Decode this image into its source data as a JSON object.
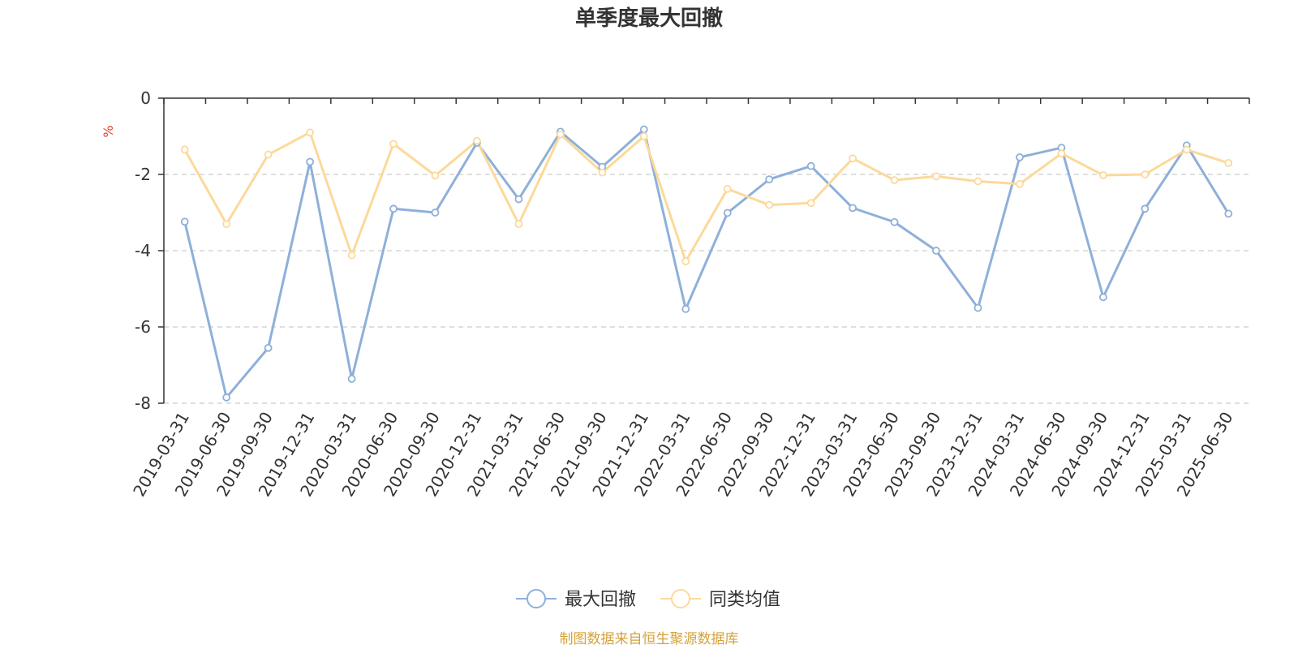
{
  "chart_data": {
    "type": "line",
    "title": "单季度最大回撤",
    "ylabel": "%",
    "ylim": [
      -8,
      0
    ],
    "yticks": [
      0,
      -2,
      -4,
      -6,
      -8
    ],
    "grid": true,
    "legend_position": "bottom-center",
    "categories": [
      "2019-03-31",
      "2019-06-30",
      "2019-09-30",
      "2019-12-31",
      "2020-03-31",
      "2020-06-30",
      "2020-09-30",
      "2020-12-31",
      "2021-03-31",
      "2021-06-30",
      "2021-09-30",
      "2021-12-31",
      "2022-03-31",
      "2022-06-30",
      "2022-09-30",
      "2022-12-31",
      "2023-03-31",
      "2023-06-30",
      "2023-09-30",
      "2023-12-31",
      "2024-03-31",
      "2024-06-30",
      "2024-09-30",
      "2024-12-31",
      "2025-03-31",
      "2025-06-30"
    ],
    "series": [
      {
        "name": "最大回撤",
        "color": "#8eb0d9",
        "values": [
          -3.24,
          -7.85,
          -6.55,
          -1.67,
          -7.36,
          -2.9,
          -3.0,
          -1.17,
          -2.65,
          -0.88,
          -1.8,
          -0.82,
          -5.53,
          -3.01,
          -2.13,
          -1.78,
          -2.88,
          -3.25,
          -4.0,
          -5.5,
          -1.55,
          -1.3,
          -5.22,
          -2.9,
          -1.24,
          -3.03
        ]
      },
      {
        "name": "同类均值",
        "color": "#fcd99a",
        "values": [
          -1.35,
          -3.3,
          -1.48,
          -0.9,
          -4.12,
          -1.2,
          -2.03,
          -1.12,
          -3.3,
          -0.95,
          -1.95,
          -1.0,
          -4.28,
          -2.38,
          -2.8,
          -2.75,
          -1.58,
          -2.15,
          -2.05,
          -2.18,
          -2.25,
          -1.45,
          -2.02,
          -2.0,
          -1.35,
          -1.7
        ]
      }
    ]
  },
  "source_text": "制图数据来自恒生聚源数据库",
  "colors": {
    "axis": "#333333",
    "grid": "#cccccc",
    "source": "#d4a23a"
  }
}
